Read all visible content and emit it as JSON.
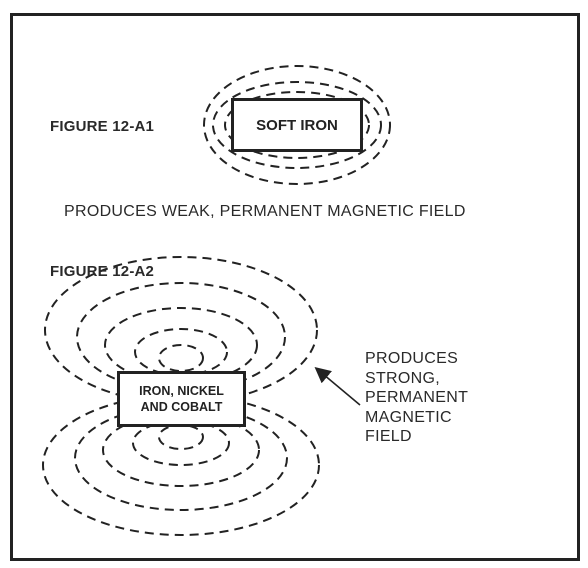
{
  "figure_a1": {
    "label": "FIGURE 12-A1",
    "box_text": "SOFT IRON",
    "caption": "PRODUCES WEAK, PERMANENT MAGNETIC FIELD"
  },
  "figure_a2": {
    "label": "FIGURE 12-A2",
    "box_lines": [
      "IRON, NICKEL",
      "AND COBALT"
    ],
    "caption_lines": [
      "PRODUCES",
      "STRONG,",
      "PERMANENT",
      "MAGNETIC",
      "FIELD"
    ]
  },
  "colors": {
    "ink": "#222222",
    "background": "#ffffff"
  }
}
